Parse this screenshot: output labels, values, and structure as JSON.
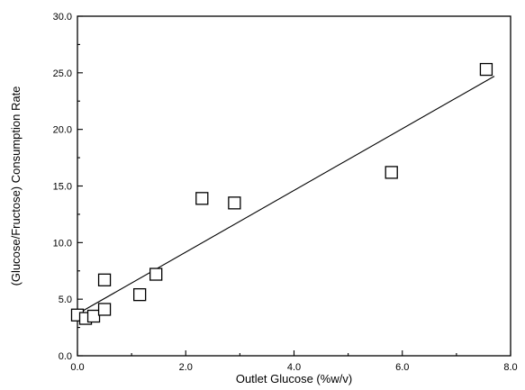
{
  "chart_data": {
    "type": "scatter",
    "title": "",
    "xlabel": "Outlet Glucose (%w/v)",
    "ylabel": "(Glucose/Fructose) Consumption Rate",
    "xlim": [
      0.0,
      8.0
    ],
    "ylim": [
      0.0,
      30.0
    ],
    "x_ticks": [
      "0.0",
      "2.0",
      "4.0",
      "6.0",
      "8.0"
    ],
    "y_ticks": [
      "0.0",
      "5.0",
      "10.0",
      "15.0",
      "20.0",
      "25.0",
      "30.0"
    ],
    "grid": false,
    "legend": "none",
    "marker": "open-square",
    "series": [
      {
        "points": [
          {
            "x": 0.0,
            "y": 3.6
          },
          {
            "x": 0.15,
            "y": 3.3
          },
          {
            "x": 0.3,
            "y": 3.5
          },
          {
            "x": 0.5,
            "y": 4.1
          },
          {
            "x": 0.5,
            "y": 6.7
          },
          {
            "x": 1.15,
            "y": 5.4
          },
          {
            "x": 1.45,
            "y": 7.2
          },
          {
            "x": 2.3,
            "y": 13.9
          },
          {
            "x": 2.9,
            "y": 13.5
          },
          {
            "x": 5.8,
            "y": 16.2
          },
          {
            "x": 7.55,
            "y": 25.3
          }
        ]
      }
    ],
    "fit_line": {
      "x": [
        0.0,
        7.7
      ],
      "y": [
        3.7,
        24.7
      ]
    }
  }
}
